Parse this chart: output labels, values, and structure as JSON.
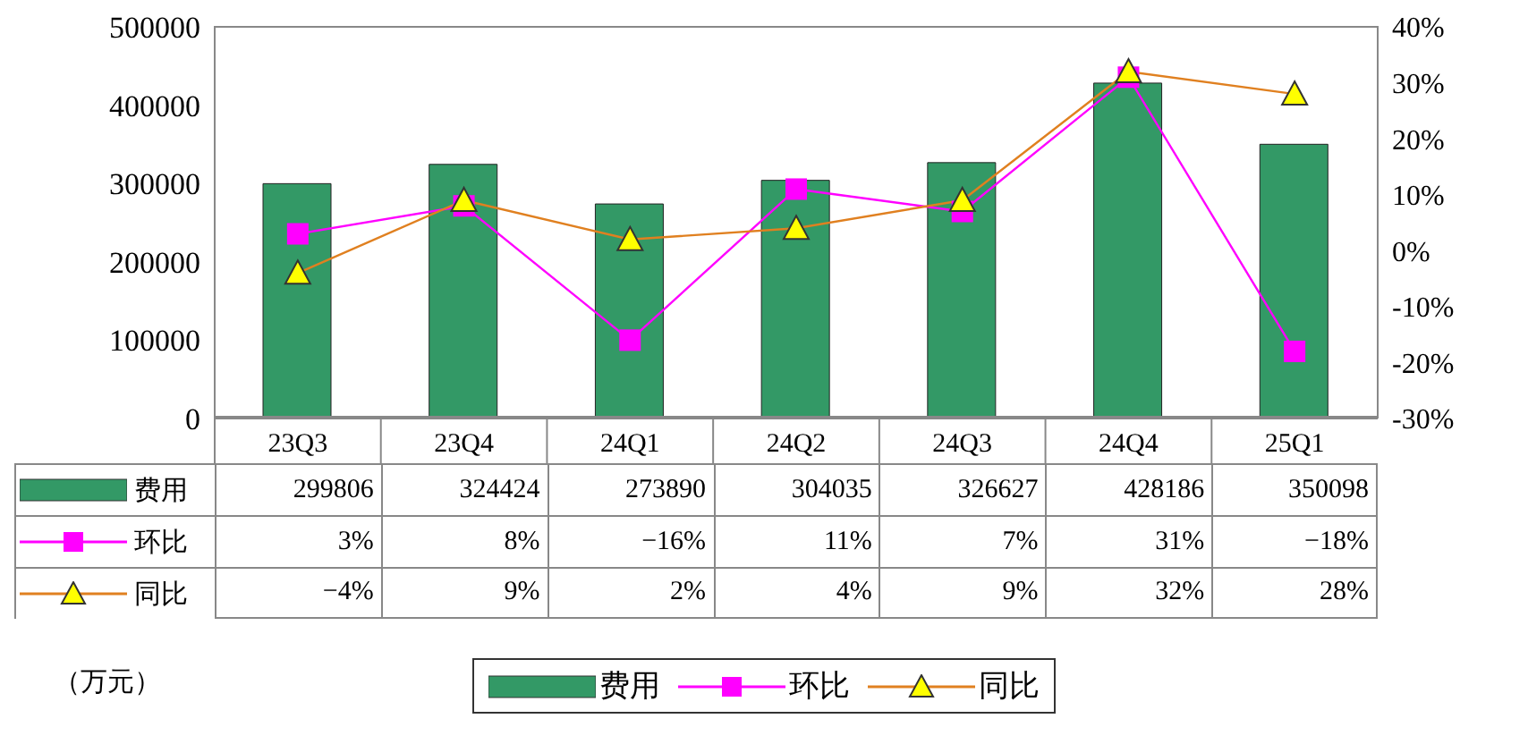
{
  "chart_data": {
    "type": "bar",
    "categories": [
      "23Q3",
      "23Q4",
      "24Q1",
      "24Q2",
      "24Q3",
      "24Q4",
      "25Q1"
    ],
    "series": [
      {
        "name": "费用",
        "color": "#339966",
        "values": [
          299806,
          324424,
          273890,
          304035,
          326627,
          428186,
          350098
        ],
        "value_labels": [
          "299806",
          "324424",
          "273890",
          "304035",
          "326627",
          "428186",
          "350098"
        ]
      },
      {
        "name": "环比",
        "type": "line",
        "axis": "y2",
        "color": "#ff00ff",
        "marker": "square",
        "values": [
          3,
          8,
          -16,
          11,
          7,
          31,
          -18
        ],
        "value_labels": [
          "3%",
          "8%",
          "−16%",
          "11%",
          "7%",
          "31%",
          "−18%"
        ]
      },
      {
        "name": "同比",
        "type": "line",
        "axis": "y2",
        "color": "#e08020",
        "marker": "triangle",
        "values": [
          -4,
          9,
          2,
          4,
          9,
          32,
          28
        ],
        "value_labels": [
          "−4%",
          "9%",
          "2%",
          "4%",
          "9%",
          "32%",
          "28%"
        ]
      }
    ],
    "ylim": [
      0,
      500000
    ],
    "yticks": [
      0,
      100000,
      200000,
      300000,
      400000,
      500000
    ],
    "y2lim": [
      -30,
      40
    ],
    "y2ticks": [
      {
        "value": -30,
        "label": "-30%"
      },
      {
        "value": -20,
        "label": "-20%"
      },
      {
        "value": -10,
        "label": "-10%"
      },
      {
        "value": 0,
        "label": "0%"
      },
      {
        "value": 10,
        "label": "10%"
      },
      {
        "value": 20,
        "label": "20%"
      },
      {
        "value": 30,
        "label": "30%"
      },
      {
        "value": 40,
        "label": "40%"
      }
    ],
    "grid": false,
    "legend": "bottom",
    "annotations": [
      "（万元）"
    ]
  }
}
